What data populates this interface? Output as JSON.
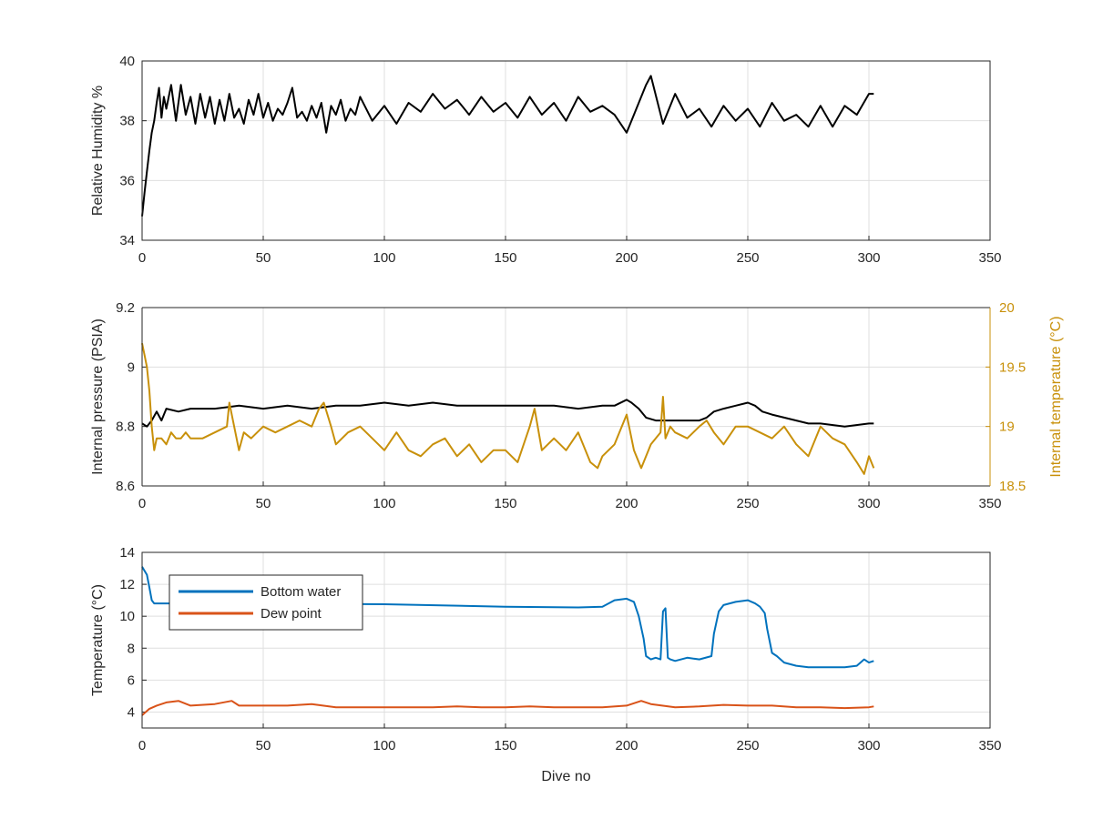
{
  "chart_data": [
    {
      "type": "line",
      "title": "",
      "xlabel": "",
      "ylabel": "Relative Humidity %",
      "xlim": [
        0,
        350
      ],
      "ylim": [
        34,
        40
      ],
      "xticks": [
        "0",
        "50",
        "100",
        "150",
        "200",
        "250",
        "300",
        "350"
      ],
      "yticks": [
        "34",
        "36",
        "38",
        "40"
      ],
      "grid": true,
      "series": [
        {
          "color": "#000000",
          "x": [
            0,
            1,
            2,
            3,
            4,
            5,
            6,
            7,
            8,
            9,
            10,
            12,
            14,
            16,
            18,
            20,
            22,
            24,
            26,
            28,
            30,
            32,
            34,
            36,
            38,
            40,
            42,
            44,
            46,
            48,
            50,
            52,
            54,
            56,
            58,
            60,
            62,
            64,
            66,
            68,
            70,
            72,
            74,
            76,
            78,
            80,
            82,
            84,
            86,
            88,
            90,
            95,
            100,
            105,
            110,
            115,
            120,
            125,
            130,
            135,
            140,
            145,
            150,
            155,
            160,
            165,
            170,
            175,
            180,
            185,
            190,
            195,
            200,
            205,
            208,
            210,
            215,
            220,
            225,
            230,
            235,
            240,
            245,
            250,
            255,
            260,
            265,
            270,
            275,
            280,
            285,
            290,
            295,
            300,
            302
          ],
          "values": [
            34.8,
            35.6,
            36.3,
            37.0,
            37.6,
            38.0,
            38.6,
            39.1,
            38.1,
            38.8,
            38.4,
            39.2,
            38.0,
            39.2,
            38.2,
            38.8,
            37.9,
            38.9,
            38.1,
            38.8,
            37.9,
            38.7,
            38.0,
            38.9,
            38.1,
            38.4,
            37.9,
            38.7,
            38.2,
            38.9,
            38.1,
            38.6,
            38.0,
            38.4,
            38.2,
            38.6,
            39.1,
            38.1,
            38.3,
            38.0,
            38.5,
            38.1,
            38.6,
            37.6,
            38.5,
            38.2,
            38.7,
            38.0,
            38.4,
            38.2,
            38.8,
            38.0,
            38.5,
            37.9,
            38.6,
            38.3,
            38.9,
            38.4,
            38.7,
            38.2,
            38.8,
            38.3,
            38.6,
            38.1,
            38.8,
            38.2,
            38.6,
            38.0,
            38.8,
            38.3,
            38.5,
            38.2,
            37.6,
            38.6,
            39.2,
            39.5,
            37.9,
            38.9,
            38.1,
            38.4,
            37.8,
            38.5,
            38.0,
            38.4,
            37.8,
            38.6,
            38.0,
            38.2,
            37.8,
            38.5,
            37.8,
            38.5,
            38.2,
            38.9,
            38.9
          ]
        }
      ]
    },
    {
      "type": "line",
      "title": "",
      "xlabel": "",
      "ylabel": "Internal pressure (PSIA)",
      "ylabel_right": "Internal temperature (°C)",
      "xlim": [
        0,
        350
      ],
      "ylim": [
        8.6,
        9.2
      ],
      "ylim_right": [
        18.5,
        20
      ],
      "xticks": [
        "0",
        "50",
        "100",
        "150",
        "200",
        "250",
        "300",
        "350"
      ],
      "yticks": [
        "8.6",
        "8.8",
        "9",
        "9.2"
      ],
      "yticks_right": [
        "18.5",
        "19",
        "19.5",
        "20"
      ],
      "grid": true,
      "series": [
        {
          "color": "#000000",
          "axis": "left",
          "x": [
            0,
            2,
            4,
            6,
            8,
            10,
            15,
            20,
            30,
            40,
            50,
            60,
            70,
            80,
            90,
            100,
            110,
            120,
            130,
            140,
            150,
            160,
            170,
            180,
            190,
            195,
            200,
            202,
            205,
            208,
            212,
            215,
            220,
            225,
            230,
            233,
            236,
            240,
            245,
            250,
            253,
            256,
            260,
            265,
            270,
            275,
            280,
            290,
            300,
            302
          ],
          "values": [
            8.81,
            8.8,
            8.82,
            8.85,
            8.82,
            8.86,
            8.85,
            8.86,
            8.86,
            8.87,
            8.86,
            8.87,
            8.86,
            8.87,
            8.87,
            8.88,
            8.87,
            8.88,
            8.87,
            8.87,
            8.87,
            8.87,
            8.87,
            8.86,
            8.87,
            8.87,
            8.89,
            8.88,
            8.86,
            8.83,
            8.82,
            8.82,
            8.82,
            8.82,
            8.82,
            8.83,
            8.85,
            8.86,
            8.87,
            8.88,
            8.87,
            8.85,
            8.84,
            8.83,
            8.82,
            8.81,
            8.81,
            8.8,
            8.81,
            8.81
          ]
        },
        {
          "color": "#c8900a",
          "axis": "right",
          "x": [
            0,
            1,
            2,
            3,
            4,
            5,
            6,
            8,
            10,
            12,
            14,
            16,
            18,
            20,
            25,
            30,
            35,
            36,
            38,
            40,
            42,
            45,
            50,
            55,
            60,
            65,
            70,
            73,
            75,
            78,
            80,
            85,
            90,
            95,
            100,
            105,
            110,
            115,
            120,
            125,
            130,
            135,
            140,
            145,
            150,
            155,
            160,
            162,
            165,
            170,
            175,
            180,
            185,
            188,
            190,
            195,
            200,
            203,
            206,
            210,
            214,
            215,
            216,
            218,
            220,
            225,
            230,
            233,
            236,
            240,
            245,
            250,
            255,
            260,
            265,
            270,
            275,
            280,
            285,
            290,
            295,
            298,
            300,
            302
          ],
          "values": [
            19.7,
            19.6,
            19.5,
            19.3,
            19.0,
            18.8,
            18.9,
            18.9,
            18.85,
            18.95,
            18.9,
            18.9,
            18.95,
            18.9,
            18.9,
            18.95,
            19.0,
            19.2,
            19.0,
            18.8,
            18.95,
            18.9,
            19.0,
            18.95,
            19.0,
            19.05,
            19.0,
            19.15,
            19.2,
            19.0,
            18.85,
            18.95,
            19.0,
            18.9,
            18.8,
            18.95,
            18.8,
            18.75,
            18.85,
            18.9,
            18.75,
            18.85,
            18.7,
            18.8,
            18.8,
            18.7,
            19.0,
            19.15,
            18.8,
            18.9,
            18.8,
            18.95,
            18.7,
            18.65,
            18.75,
            18.85,
            19.1,
            18.8,
            18.65,
            18.85,
            18.95,
            19.25,
            18.9,
            19.0,
            18.95,
            18.9,
            19.0,
            19.05,
            18.95,
            18.85,
            19.0,
            19.0,
            18.95,
            18.9,
            19.0,
            18.85,
            18.75,
            19.0,
            18.9,
            18.85,
            18.7,
            18.6,
            18.75,
            18.65
          ]
        }
      ]
    },
    {
      "type": "line",
      "title": "",
      "xlabel": "Dive no",
      "ylabel": "Temperature (°C)",
      "xlim": [
        0,
        350
      ],
      "ylim": [
        3,
        14
      ],
      "xticks": [
        "0",
        "50",
        "100",
        "150",
        "200",
        "250",
        "300",
        "350"
      ],
      "yticks": [
        "4",
        "6",
        "8",
        "10",
        "12",
        "14"
      ],
      "grid": true,
      "legend_position": "top-left",
      "series": [
        {
          "name": "Bottom water",
          "color": "#0072bd",
          "x": [
            0,
            2,
            3,
            4,
            5,
            10,
            20,
            50,
            100,
            150,
            180,
            190,
            195,
            200,
            203,
            205,
            207,
            208,
            210,
            212,
            214,
            215,
            216,
            217,
            218,
            220,
            225,
            230,
            235,
            236,
            238,
            240,
            245,
            250,
            253,
            255,
            257,
            258,
            260,
            262,
            265,
            270,
            275,
            280,
            285,
            290,
            295,
            298,
            300,
            302
          ],
          "values": [
            13.1,
            12.6,
            11.8,
            11.0,
            10.8,
            10.8,
            10.8,
            10.8,
            10.75,
            10.6,
            10.55,
            10.6,
            11.0,
            11.1,
            10.9,
            10.0,
            8.6,
            7.5,
            7.3,
            7.4,
            7.3,
            10.3,
            10.5,
            7.4,
            7.3,
            7.2,
            7.4,
            7.3,
            7.5,
            8.9,
            10.3,
            10.7,
            10.9,
            11.0,
            10.8,
            10.6,
            10.2,
            9.2,
            7.7,
            7.5,
            7.1,
            6.9,
            6.8,
            6.8,
            6.8,
            6.8,
            6.9,
            7.3,
            7.1,
            7.2
          ]
        },
        {
          "name": "Dew point",
          "color": "#d95319",
          "x": [
            0,
            3,
            6,
            10,
            15,
            20,
            30,
            37,
            40,
            50,
            60,
            70,
            80,
            90,
            100,
            110,
            120,
            130,
            140,
            150,
            160,
            170,
            180,
            190,
            200,
            206,
            210,
            220,
            230,
            240,
            250,
            260,
            270,
            280,
            290,
            300,
            302
          ],
          "values": [
            3.8,
            4.2,
            4.4,
            4.6,
            4.7,
            4.4,
            4.5,
            4.7,
            4.4,
            4.4,
            4.4,
            4.5,
            4.3,
            4.3,
            4.3,
            4.3,
            4.3,
            4.35,
            4.3,
            4.3,
            4.35,
            4.3,
            4.3,
            4.3,
            4.4,
            4.7,
            4.5,
            4.3,
            4.35,
            4.45,
            4.4,
            4.4,
            4.3,
            4.3,
            4.25,
            4.3,
            4.35
          ]
        }
      ]
    }
  ]
}
